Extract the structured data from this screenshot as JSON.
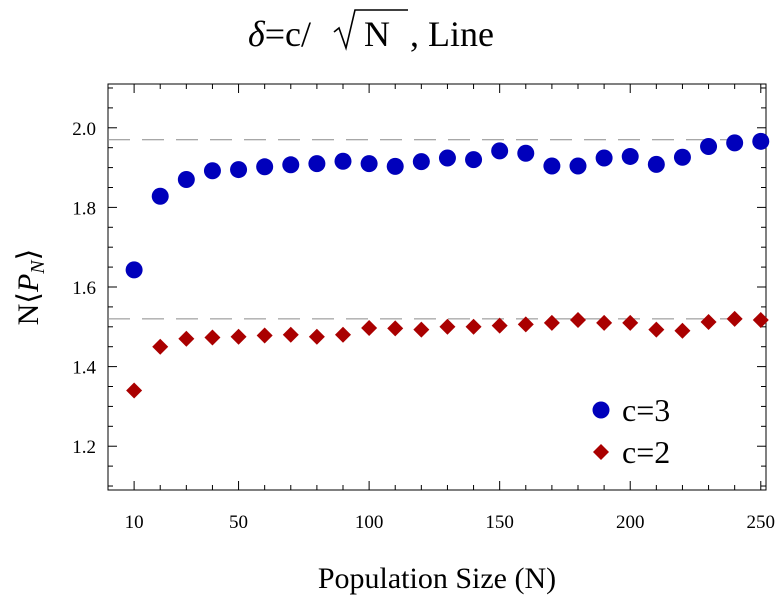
{
  "chart_data": {
    "type": "scatter",
    "title": {
      "delta": "δ",
      "eq": "=c/",
      "radicand": "N",
      "suffix": ", Line"
    },
    "xlabel": "Population Size (N)",
    "ylabel": {
      "pre": "N⟨",
      "p": "P",
      "sub": "N",
      "post": "⟩"
    },
    "xlim": [
      0,
      252
    ],
    "ylim": [
      1.09,
      2.11
    ],
    "xticks": [
      10,
      50,
      100,
      150,
      200,
      250
    ],
    "yticks": [
      1.2,
      1.4,
      1.6,
      1.8,
      2.0
    ],
    "ytick_labels": [
      "1.2",
      "1.4",
      "1.6",
      "1.8",
      "2.0"
    ],
    "xminor_step": 10,
    "yminor_step": 0.05,
    "grid": false,
    "legend_position": "bottom-right",
    "reference_lines": [
      1.97,
      1.52
    ],
    "x": [
      10,
      20,
      30,
      40,
      50,
      60,
      70,
      80,
      90,
      100,
      110,
      120,
      130,
      140,
      150,
      160,
      170,
      180,
      190,
      200,
      210,
      220,
      230,
      240,
      250
    ],
    "series": [
      {
        "name": "c=3",
        "marker": "circle",
        "color": "#0000bb",
        "values": [
          1.643,
          1.828,
          1.87,
          1.892,
          1.895,
          1.902,
          1.907,
          1.91,
          1.916,
          1.91,
          1.903,
          1.915,
          1.924,
          1.92,
          1.942,
          1.936,
          1.904,
          1.904,
          1.924,
          1.928,
          1.908,
          1.926,
          1.953,
          1.962,
          1.966
        ]
      },
      {
        "name": "c=2",
        "marker": "diamond",
        "color": "#aa0000",
        "values": [
          1.34,
          1.45,
          1.47,
          1.473,
          1.475,
          1.478,
          1.48,
          1.475,
          1.48,
          1.497,
          1.496,
          1.493,
          1.5,
          1.5,
          1.503,
          1.506,
          1.51,
          1.517,
          1.51,
          1.51,
          1.493,
          1.49,
          1.512,
          1.52,
          1.517
        ]
      }
    ]
  }
}
